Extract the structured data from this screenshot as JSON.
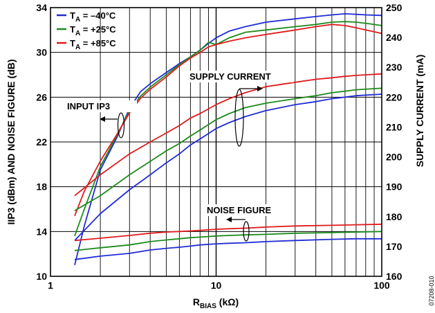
{
  "chart_data": {
    "type": "line",
    "xlabel": "R",
    "xlabel_sub": "BIAS",
    "xlabel_unit": " (kΩ)",
    "ylabel_left": "IIP3 (dBm) AND NOISE FIGURE (dB)",
    "ylabel_right": "SUPPLY CURRENT (mA)",
    "x_scale": "log",
    "xlim": [
      1,
      100
    ],
    "ylim_left": [
      10,
      34
    ],
    "ylim_right": [
      160,
      250
    ],
    "x_ticks": [
      "1",
      "10",
      "100"
    ],
    "y_ticks_left": [
      "10",
      "14",
      "18",
      "22",
      "26",
      "30",
      "34"
    ],
    "y_ticks_right": [
      "160",
      "170",
      "180",
      "190",
      "200",
      "210",
      "220",
      "230",
      "240",
      "250"
    ],
    "grid": true,
    "legend_position": "top-left",
    "legend": [
      {
        "pre": "T",
        "sub": "A",
        "post": " = –40°C",
        "color": "#1f2bd6"
      },
      {
        "pre": "T",
        "sub": "A",
        "post": " = +25°C",
        "color": "#1c8a1c"
      },
      {
        "pre": "T",
        "sub": "A",
        "post": " = +85°C",
        "color": "#e01b1b"
      }
    ],
    "annotations": {
      "input_ip3": "INPUT IP3",
      "supply_current": "SUPPLY CURRENT",
      "noise_figure": "NOISE FIGURE"
    },
    "figure_id": "07208-010",
    "series": [
      {
        "group": "iip3",
        "axis": "left",
        "temp": "-40°C",
        "color": "#1f2bd6",
        "x": [
          1.4,
          1.6,
          2,
          2.5,
          3,
          3.5,
          4,
          5,
          6,
          7,
          8,
          9,
          10,
          12,
          15,
          20,
          30,
          40,
          50,
          60,
          70,
          80,
          100
        ],
        "y": [
          11.0,
          14.5,
          19.5,
          22.3,
          25.0,
          26.5,
          27.2,
          28.2,
          29.0,
          29.6,
          30.2,
          30.8,
          31.3,
          31.9,
          32.3,
          32.7,
          33.0,
          33.2,
          33.35,
          33.45,
          33.4,
          33.35,
          33.3
        ]
      },
      {
        "group": "iip3",
        "axis": "left",
        "temp": "+25°C",
        "color": "#1c8a1c",
        "x": [
          1.4,
          1.6,
          2,
          2.5,
          3,
          3.5,
          4,
          5,
          6,
          7,
          8,
          9,
          10,
          12,
          15,
          20,
          30,
          40,
          50,
          60,
          70,
          80,
          100
        ],
        "y": [
          13.6,
          16.0,
          19.8,
          22.5,
          24.8,
          26.1,
          26.9,
          28.0,
          28.9,
          29.6,
          30.2,
          30.9,
          30.7,
          31.3,
          31.8,
          32.0,
          32.3,
          32.5,
          32.7,
          32.75,
          32.7,
          32.6,
          32.4
        ]
      },
      {
        "group": "iip3",
        "axis": "left",
        "temp": "+85°C",
        "color": "#e01b1b",
        "x": [
          1.4,
          1.6,
          2,
          2.5,
          3,
          3.5,
          4,
          5,
          6,
          7,
          8,
          9,
          10,
          12,
          15,
          20,
          30,
          40,
          50,
          60,
          70,
          80,
          100
        ],
        "y": [
          15.4,
          17.6,
          20.3,
          22.6,
          24.6,
          25.9,
          26.7,
          27.8,
          28.8,
          29.5,
          30.0,
          30.5,
          30.7,
          31.0,
          31.3,
          31.6,
          32.0,
          32.3,
          32.5,
          32.4,
          32.2,
          32.0,
          31.7
        ]
      },
      {
        "group": "current",
        "axis": "right",
        "temp": "-40°C",
        "color": "#1f2bd6",
        "x": [
          1.4,
          2,
          3,
          4,
          5,
          6,
          7,
          8,
          10,
          12,
          15,
          20,
          30,
          40,
          50,
          60,
          70,
          100
        ],
        "y": [
          172,
          181,
          189,
          194,
          198,
          201,
          204,
          206,
          209.5,
          211.5,
          213.5,
          215.5,
          217.5,
          218.5,
          219.5,
          220,
          220.5,
          221
        ]
      },
      {
        "group": "current",
        "axis": "right",
        "temp": "+25°C",
        "color": "#1c8a1c",
        "x": [
          1.4,
          2,
          3,
          4,
          5,
          6,
          7,
          8,
          10,
          12,
          15,
          20,
          30,
          40,
          50,
          60,
          70,
          100
        ],
        "y": [
          182,
          187,
          194,
          198.5,
          202,
          204.5,
          207,
          209,
          212.5,
          214.5,
          216.5,
          218,
          219.5,
          220.5,
          221.5,
          222,
          222.5,
          223
        ]
      },
      {
        "group": "current",
        "axis": "right",
        "temp": "+85°C",
        "color": "#e01b1b",
        "x": [
          1.4,
          2,
          3,
          4,
          5,
          6,
          7,
          8,
          10,
          12,
          15,
          20,
          30,
          40,
          50,
          60,
          70,
          100
        ],
        "y": [
          187,
          194,
          201,
          205,
          208,
          210.5,
          213,
          214.5,
          217.5,
          219.5,
          221.5,
          223.5,
          225,
          226,
          226.5,
          227,
          227.3,
          227.8
        ]
      },
      {
        "group": "nf",
        "axis": "left",
        "temp": "-40°C",
        "color": "#1f2bd6",
        "x": [
          1.4,
          2,
          3,
          4,
          5,
          6,
          7,
          8,
          10,
          12,
          15,
          20,
          30,
          50,
          70,
          100
        ],
        "y": [
          11.5,
          11.8,
          12.05,
          12.35,
          12.5,
          12.6,
          12.7,
          12.8,
          12.9,
          12.95,
          13.0,
          13.1,
          13.2,
          13.3,
          13.35,
          13.35
        ]
      },
      {
        "group": "nf",
        "axis": "left",
        "temp": "+25°C",
        "color": "#1c8a1c",
        "x": [
          1.4,
          2,
          3,
          4,
          5,
          6,
          7,
          8,
          10,
          12,
          15,
          20,
          30,
          50,
          70,
          100
        ],
        "y": [
          12.3,
          12.55,
          12.8,
          13.1,
          13.25,
          13.35,
          13.45,
          13.5,
          13.6,
          13.65,
          13.7,
          13.75,
          13.85,
          13.9,
          13.95,
          14.0
        ]
      },
      {
        "group": "nf",
        "axis": "left",
        "temp": "+85°C",
        "color": "#e01b1b",
        "x": [
          1.4,
          2,
          3,
          4,
          5,
          6,
          7,
          8,
          10,
          12,
          15,
          20,
          30,
          50,
          70,
          100
        ],
        "y": [
          13.2,
          13.4,
          13.65,
          13.85,
          13.95,
          14.0,
          14.05,
          14.1,
          14.2,
          14.25,
          14.3,
          14.4,
          14.5,
          14.55,
          14.6,
          14.65
        ]
      }
    ]
  }
}
